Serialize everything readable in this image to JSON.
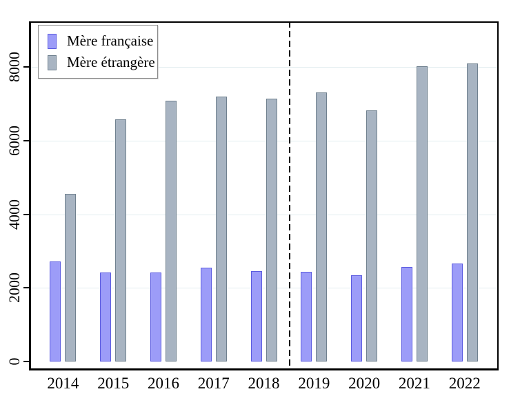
{
  "chart_data": {
    "type": "bar",
    "title": "",
    "xlabel": "",
    "ylabel": "",
    "categories": [
      "2014",
      "2015",
      "2016",
      "2017",
      "2018",
      "2019",
      "2020",
      "2021",
      "2022"
    ],
    "series": [
      {
        "name": "Mère française",
        "fill_color": "#9c9cf8",
        "border_color": "#5b5be0",
        "values": [
          2720,
          2420,
          2420,
          2550,
          2460,
          2440,
          2340,
          2560,
          2660
        ]
      },
      {
        "name": "Mère étrangère",
        "fill_color": "#a8b4c2",
        "border_color": "#70818f",
        "values": [
          4560,
          6570,
          7090,
          7200,
          7140,
          7310,
          6820,
          8030,
          8100
        ]
      }
    ],
    "yticks": [
      0,
      2000,
      4000,
      6000,
      8000
    ],
    "ylim": [
      0,
      9200
    ],
    "grid": true,
    "gridline_color": "#e2edf0",
    "legend_position": "top-left",
    "annotations": [
      {
        "type": "vline",
        "between": [
          "2018",
          "2019"
        ],
        "style": "dashed",
        "color": "#000000"
      }
    ]
  }
}
